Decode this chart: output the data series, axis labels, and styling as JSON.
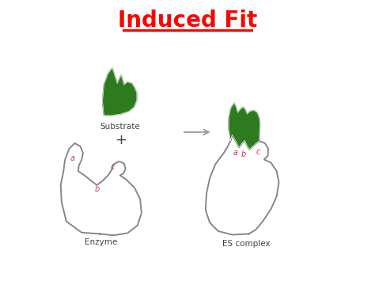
{
  "title": "Induced Fit",
  "title_color": "#FF0000",
  "title_fontsize": 20,
  "bg_color": "#FFFFFF",
  "green_fill": "#2D7A1F",
  "outline_color": "#888888",
  "label_color_red": "#CC3366",
  "label_color_black": "#444444",
  "substrate_label": "Substrate",
  "enzyme_label": "Enzyme",
  "es_label": "ES complex",
  "plus_sign": "+"
}
